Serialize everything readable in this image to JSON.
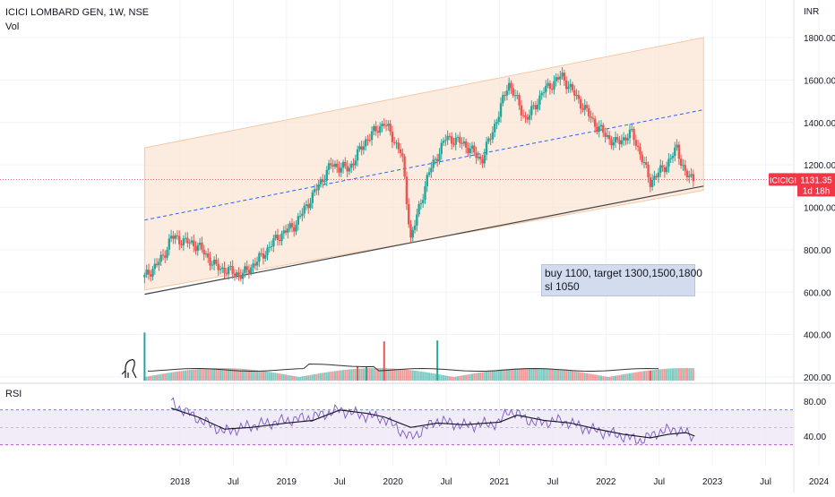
{
  "header": {
    "symbol_line": "ICICI LOMBARD GEN, 1W, NSE",
    "volume_label": "Vol",
    "currency": "INR"
  },
  "price_tag": {
    "symbol": "ICICIGI",
    "price": "1131.35",
    "countdown": "1d 18h",
    "color": "#f23645"
  },
  "note": {
    "line1": "buy 1100, target 1300,1500,1800",
    "line2": "sl 1050"
  },
  "rsi": {
    "label": "RSI"
  },
  "colors": {
    "up": "#26a69a",
    "down": "#ef5350",
    "channel": "#fbe2cf",
    "midline": "#2962ff",
    "rsi_line": "#7e57c2",
    "rsi_band": "#ede7f6",
    "rsi_upper": "#2962ff",
    "rsi_lower": "#9c27b0"
  },
  "chart_data": [
    {
      "type": "candlestick",
      "title": "ICICI LOMBARD GEN, 1W, NSE",
      "ylabel": "INR",
      "ylim": [
        0,
        1880
      ],
      "y_ticks": [
        "1800.00",
        "1600.00",
        "1400.00",
        "1200.00",
        "1000.00",
        "800.00",
        "600.00",
        "400.00",
        "200.00"
      ],
      "x_ticks": [
        "2018",
        "Jul",
        "2019",
        "Jul",
        "2020",
        "Jul",
        "2021",
        "Jul",
        "2022",
        "Jul",
        "2023",
        "Jul",
        "2024"
      ],
      "x_tick_dates": [
        "2018-01",
        "2018-07",
        "2019-01",
        "2019-07",
        "2020-01",
        "2020-07",
        "2021-01",
        "2021-07",
        "2022-01",
        "2022-07",
        "2023-01",
        "2023-07",
        "2024-01"
      ],
      "last_price": 1131.35,
      "price_path": [
        [
          "2017-09",
          670
        ],
        [
          "2017-11",
          760
        ],
        [
          "2017-12",
          860
        ],
        [
          "2018-03",
          820
        ],
        [
          "2018-05",
          720
        ],
        [
          "2018-08",
          680
        ],
        [
          "2018-10",
          760
        ],
        [
          "2018-12",
          860
        ],
        [
          "2019-02",
          920
        ],
        [
          "2019-04",
          1060
        ],
        [
          "2019-06",
          1200
        ],
        [
          "2019-08",
          1180
        ],
        [
          "2019-10",
          1320
        ],
        [
          "2019-12",
          1400
        ],
        [
          "2020-02",
          1250
        ],
        [
          "2020-03",
          850
        ],
        [
          "2020-05",
          1160
        ],
        [
          "2020-07",
          1330
        ],
        [
          "2020-09",
          1300
        ],
        [
          "2020-11",
          1220
        ],
        [
          "2021-01",
          1450
        ],
        [
          "2021-02",
          1590
        ],
        [
          "2021-04",
          1410
        ],
        [
          "2021-06",
          1550
        ],
        [
          "2021-08",
          1620
        ],
        [
          "2021-10",
          1500
        ],
        [
          "2021-12",
          1380
        ],
        [
          "2022-02",
          1300
        ],
        [
          "2022-04",
          1350
        ],
        [
          "2022-06",
          1120
        ],
        [
          "2022-08",
          1210
        ],
        [
          "2022-09",
          1280
        ],
        [
          "2022-10",
          1150
        ],
        [
          "2022-11",
          1131
        ]
      ],
      "channel": {
        "upper": [
          [
            "2017-09",
            1280
          ],
          [
            "2022-12",
            1800
          ]
        ],
        "lower": [
          [
            "2017-09",
            610
          ],
          [
            "2022-12",
            1080
          ]
        ],
        "mid": [
          [
            "2017-09",
            940
          ],
          [
            "2022-12",
            1460
          ]
        ]
      },
      "support_line": [
        [
          "2017-09",
          590
        ],
        [
          "2022-12",
          1100
        ]
      ],
      "volume": [
        [
          "2017-09",
          540
        ],
        [
          "2019-09",
          160
        ],
        [
          "2019-10",
          160
        ],
        [
          "2019-12",
          440
        ],
        [
          "2020-06",
          450
        ],
        [
          "2022-06",
          110
        ]
      ]
    },
    {
      "type": "line",
      "title": "RSI",
      "ylim": [
        20,
        90
      ],
      "y_ticks": [
        "80.00",
        "40.00"
      ],
      "bands": {
        "upper": 70,
        "lower": 30
      },
      "rsi": [
        [
          "2017-12",
          78
        ],
        [
          "2018-03",
          60
        ],
        [
          "2018-06",
          45
        ],
        [
          "2018-09",
          52
        ],
        [
          "2019-01",
          58
        ],
        [
          "2019-04",
          62
        ],
        [
          "2019-07",
          70
        ],
        [
          "2019-09",
          65
        ],
        [
          "2019-12",
          60
        ],
        [
          "2020-03",
          38
        ],
        [
          "2020-06",
          58
        ],
        [
          "2020-09",
          52
        ],
        [
          "2021-01",
          55
        ],
        [
          "2021-02",
          70
        ],
        [
          "2021-05",
          55
        ],
        [
          "2021-08",
          58
        ],
        [
          "2021-11",
          48
        ],
        [
          "2022-02",
          42
        ],
        [
          "2022-05",
          35
        ],
        [
          "2022-07",
          45
        ],
        [
          "2022-09",
          48
        ],
        [
          "2022-11",
          38
        ]
      ],
      "rsi_ma": [
        [
          "2017-12",
          72
        ],
        [
          "2018-03",
          62
        ],
        [
          "2018-06",
          48
        ],
        [
          "2018-09",
          50
        ],
        [
          "2019-01",
          55
        ],
        [
          "2019-04",
          58
        ],
        [
          "2019-07",
          70
        ],
        [
          "2019-10",
          66
        ],
        [
          "2019-12",
          62
        ],
        [
          "2020-03",
          50
        ],
        [
          "2020-06",
          55
        ],
        [
          "2020-09",
          53
        ],
        [
          "2021-01",
          56
        ],
        [
          "2021-03",
          64
        ],
        [
          "2021-06",
          58
        ],
        [
          "2021-09",
          55
        ],
        [
          "2021-12",
          48
        ],
        [
          "2022-03",
          42
        ],
        [
          "2022-06",
          38
        ],
        [
          "2022-08",
          42
        ],
        [
          "2022-10",
          44
        ],
        [
          "2022-11",
          40
        ]
      ]
    }
  ]
}
